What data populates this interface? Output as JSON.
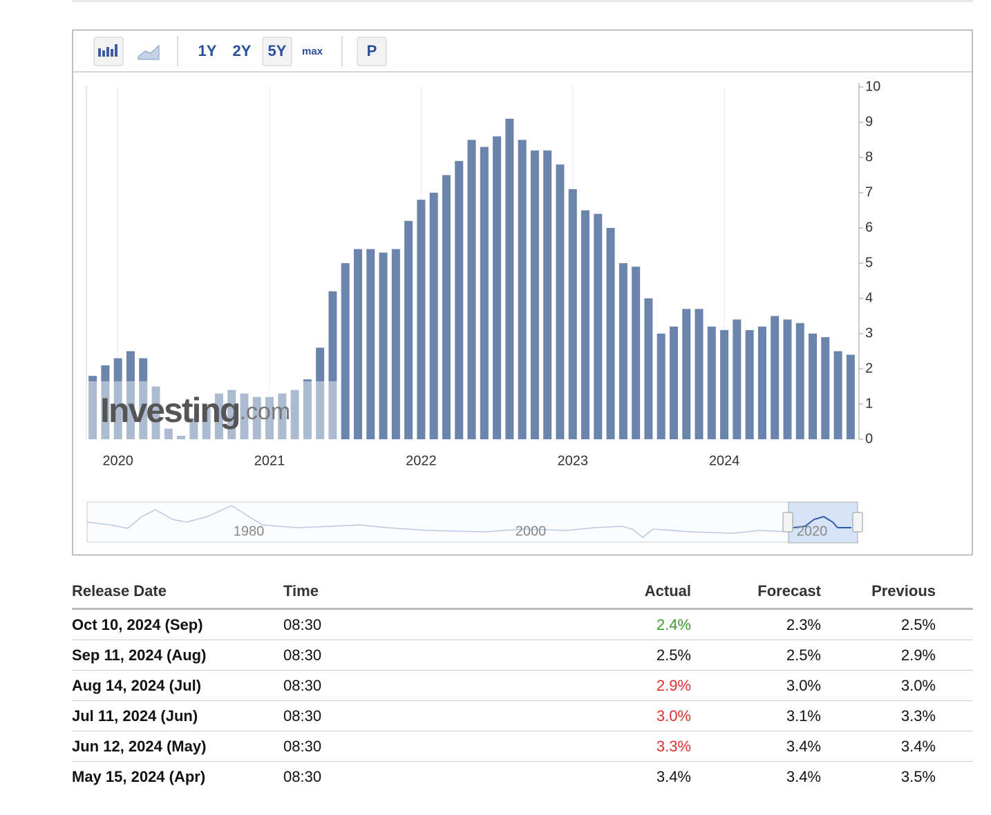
{
  "toolbar": {
    "ranges": [
      "1Y",
      "2Y",
      "5Y",
      "max"
    ],
    "active_range": 2,
    "extra_button": "P"
  },
  "chart_data": {
    "type": "bar",
    "categories": [
      null,
      null,
      "2020",
      null,
      null,
      null,
      null,
      null,
      null,
      null,
      null,
      null,
      null,
      null,
      "2021",
      null,
      null,
      null,
      null,
      null,
      null,
      null,
      null,
      null,
      null,
      null,
      "2022",
      null,
      null,
      null,
      null,
      null,
      null,
      null,
      null,
      null,
      null,
      null,
      "2023",
      null,
      null,
      null,
      null,
      null,
      null,
      null,
      null,
      null,
      null,
      null,
      "2024",
      null,
      null,
      null,
      null,
      null,
      null,
      null,
      null,
      null,
      null
    ],
    "values": [
      1.8,
      2.1,
      2.3,
      2.5,
      2.3,
      1.5,
      0.3,
      0.1,
      0.6,
      1.0,
      1.3,
      1.4,
      1.3,
      1.2,
      1.2,
      1.3,
      1.4,
      1.7,
      2.6,
      4.2,
      5.0,
      5.4,
      5.4,
      5.3,
      5.4,
      6.2,
      6.8,
      7.0,
      7.5,
      7.9,
      8.5,
      8.3,
      8.6,
      9.1,
      8.5,
      8.2,
      8.2,
      7.8,
      7.1,
      6.5,
      6.4,
      6.0,
      5.0,
      4.9,
      4.0,
      3.0,
      3.2,
      3.7,
      3.7,
      3.2,
      3.1,
      3.4,
      3.1,
      3.2,
      3.5,
      3.4,
      3.3,
      3.0,
      2.9,
      2.5,
      2.4
    ],
    "color": "#6b84ab",
    "ylim": [
      0,
      10
    ],
    "yticks": [
      0,
      1,
      2,
      3,
      4,
      5,
      6,
      7,
      8,
      9,
      10
    ],
    "grid": true,
    "watermark": [
      "Investing",
      ".com"
    ]
  },
  "navigator": {
    "labels": [
      "1980",
      "2000",
      "2020"
    ]
  },
  "table": {
    "headers": [
      "Release Date",
      "Time",
      "Actual",
      "Forecast",
      "Previous"
    ],
    "rows": [
      [
        "Oct 10, 2024 (Sep)",
        "08:30",
        "2.4%",
        "2.3%",
        "2.5%"
      ],
      [
        "Sep 11, 2024 (Aug)",
        "08:30",
        "2.5%",
        "2.5%",
        "2.9%"
      ],
      [
        "Aug 14, 2024 (Jul)",
        "08:30",
        "2.9%",
        "3.0%",
        "3.0%"
      ],
      [
        "Jul 11, 2024 (Jun)",
        "08:30",
        "3.0%",
        "3.1%",
        "3.3%"
      ],
      [
        "Jun 12, 2024 (May)",
        "08:30",
        "3.3%",
        "3.4%",
        "3.4%"
      ],
      [
        "May 15, 2024 (Apr)",
        "08:30",
        "3.4%",
        "3.4%",
        "3.5%"
      ]
    ],
    "actual_colors": [
      "#3c9a2c",
      "#111111",
      "#e03030",
      "#e03030",
      "#e03030",
      "#111111"
    ]
  }
}
